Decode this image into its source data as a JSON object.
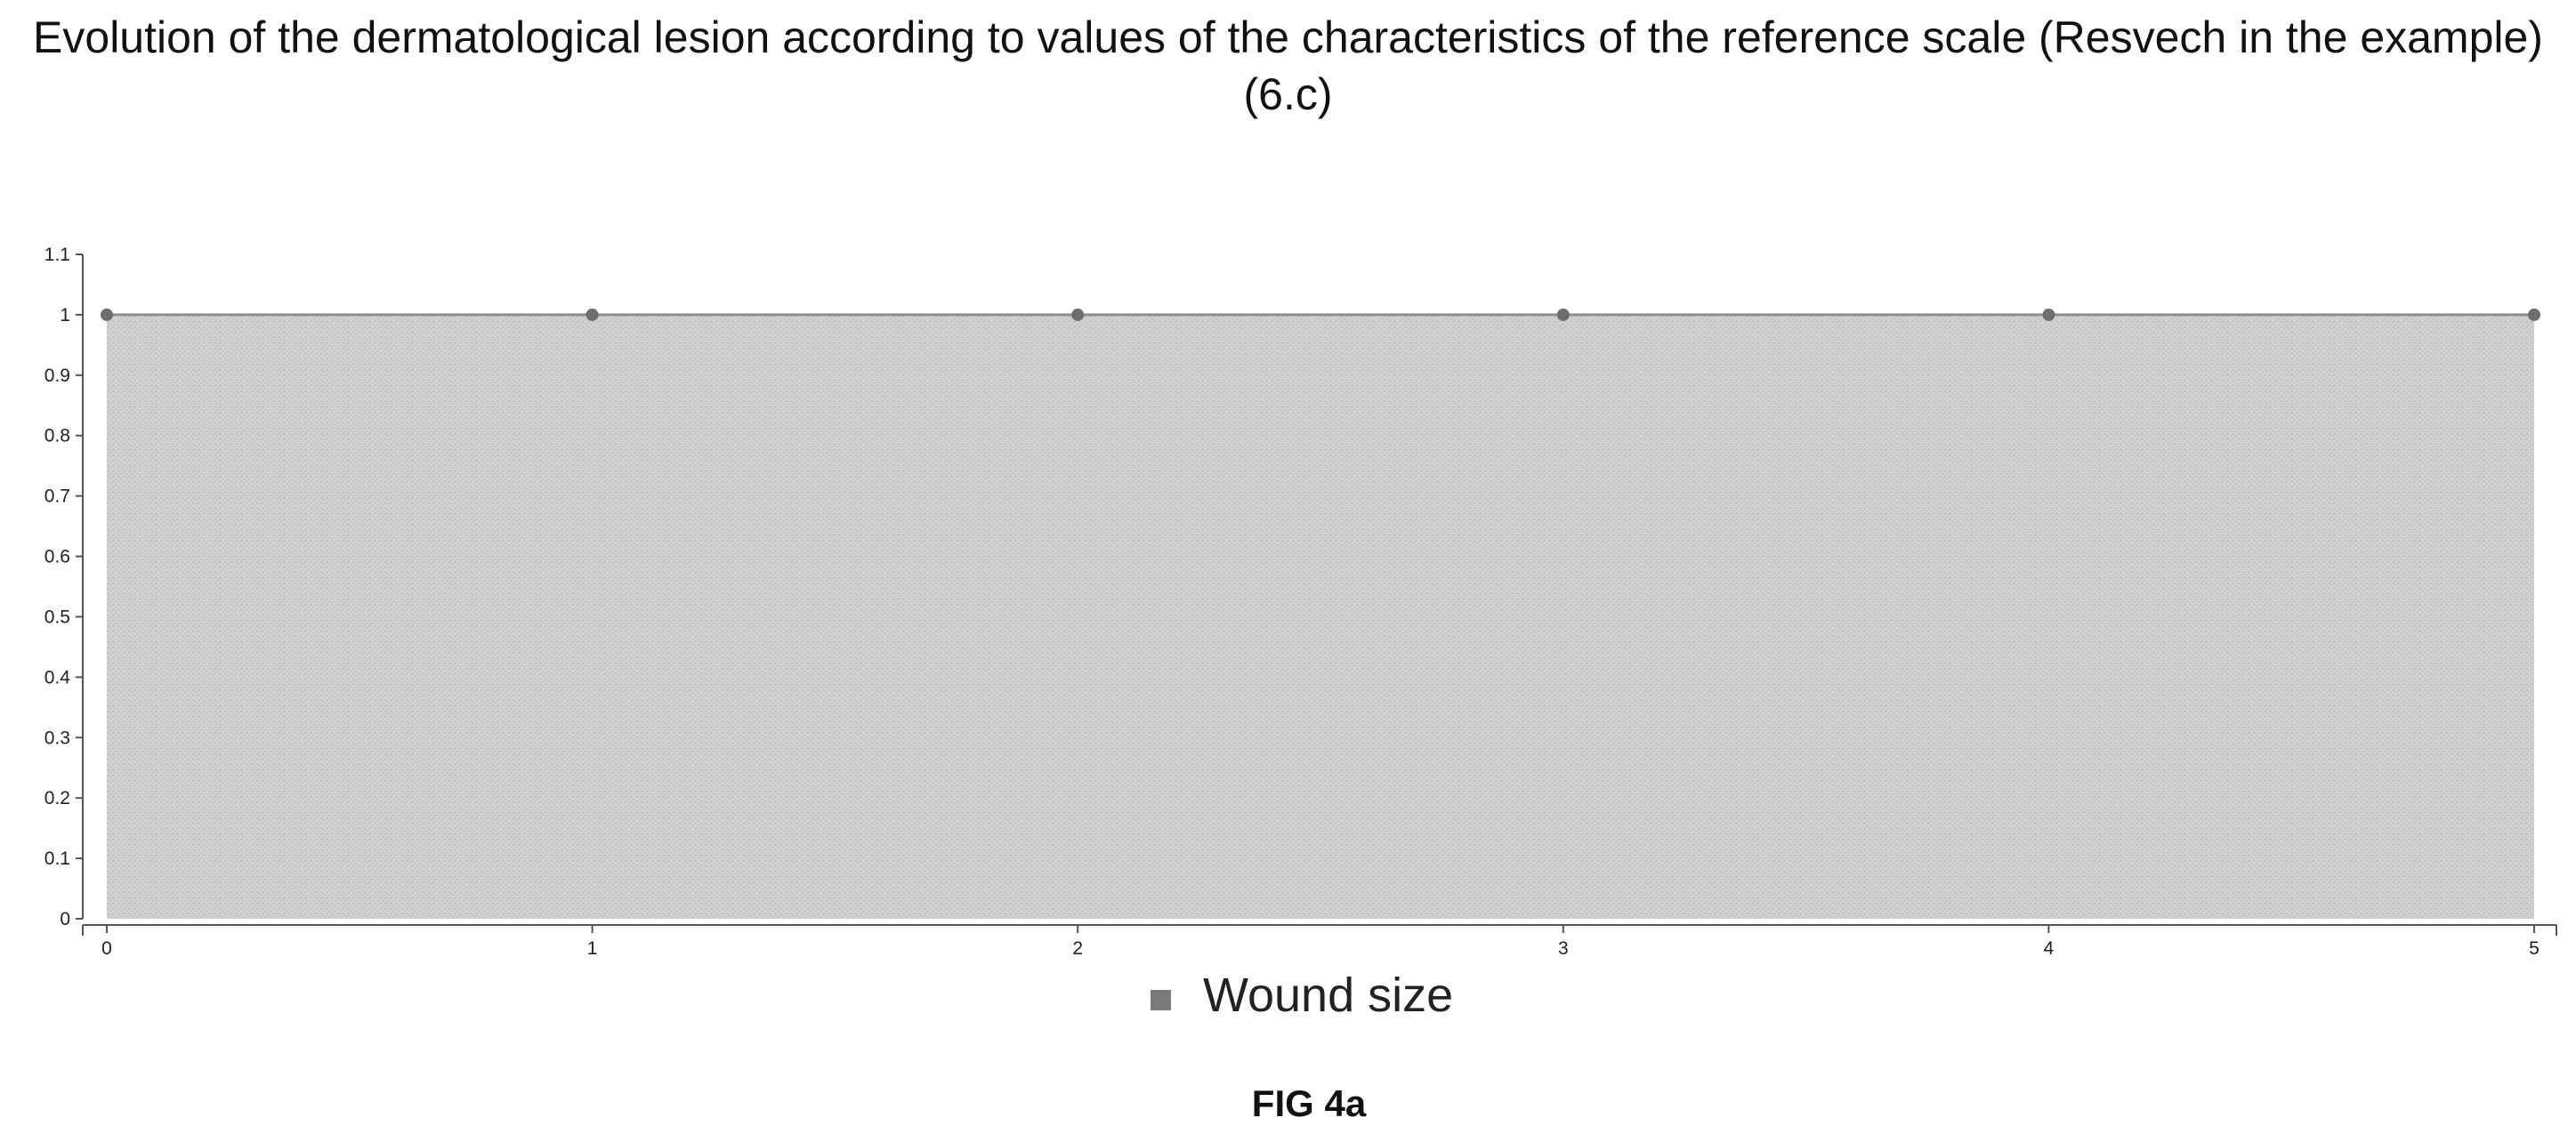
{
  "chart_data": {
    "type": "area",
    "title": "Evolution of the dermatological lesion according to values of the characteristics of the reference scale (Resvech in the example) (6.c)",
    "x": [
      0,
      1,
      2,
      3,
      4,
      5
    ],
    "x_tick_labels": [
      "0",
      "1",
      "2",
      "3",
      "4",
      "5"
    ],
    "y_tick_labels": [
      "0",
      "0.1",
      "0.2",
      "0.3",
      "0.4",
      "0.5",
      "0.6",
      "0.7",
      "0.8",
      "0.9",
      "1",
      "1.1"
    ],
    "series": [
      {
        "name": "Wound size",
        "values": [
          1,
          1,
          1,
          1,
          1,
          1
        ]
      }
    ],
    "xlim": [
      0,
      5
    ],
    "ylim": [
      0,
      1.1
    ],
    "grid": false,
    "legend_position": "bottom-center",
    "colors": {
      "fill": "#c9c9c9",
      "line": "#8f8f8f",
      "marker": "#6e6e6e",
      "legend_swatch": "#7a7a7a",
      "axis": "#555555"
    }
  },
  "caption": "FIG 4a"
}
